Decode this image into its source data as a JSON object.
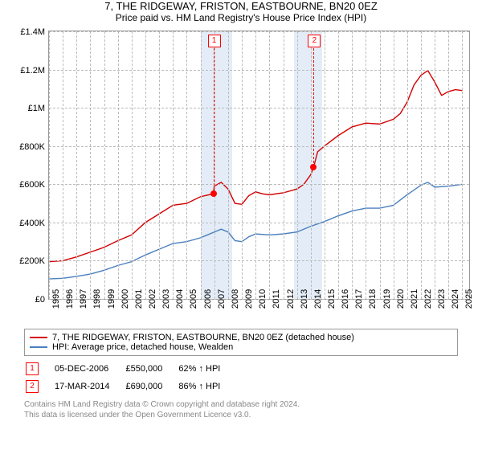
{
  "title": "7, THE RIDGEWAY, FRISTON, EASTBOURNE, BN20 0EZ",
  "subtitle": "Price paid vs. HM Land Registry's House Price Index (HPI)",
  "chart": {
    "type": "line",
    "x_years": [
      1995,
      1996,
      1997,
      1998,
      1999,
      2000,
      2001,
      2002,
      2003,
      2004,
      2005,
      2006,
      2007,
      2008,
      2009,
      2010,
      2011,
      2012,
      2013,
      2014,
      2015,
      2016,
      2017,
      2018,
      2019,
      2020,
      2021,
      2022,
      2023,
      2024,
      2025
    ],
    "xlim": [
      1995,
      2025.5
    ],
    "ylim": [
      0,
      1400000
    ],
    "ytick_step": 200000,
    "ytick_labels": [
      "£0",
      "£200K",
      "£400K",
      "£600K",
      "£800K",
      "£1M",
      "£1.2M",
      "£1.4M"
    ],
    "grid_color": "#bbbbbb",
    "band_color": "#e4edf7",
    "bands": [
      {
        "from": 2006.0,
        "to": 2008.3
      },
      {
        "from": 2012.8,
        "to": 2014.8
      }
    ],
    "series": [
      {
        "name": "property",
        "label": "7, THE RIDGEWAY, FRISTON, EASTBOURNE, BN20 0EZ (detached house)",
        "color": "#d40000",
        "line_width": 1.4,
        "points": [
          [
            1995,
            195000
          ],
          [
            1996,
            200000
          ],
          [
            1997,
            220000
          ],
          [
            1998,
            245000
          ],
          [
            1999,
            270000
          ],
          [
            2000,
            305000
          ],
          [
            2001,
            335000
          ],
          [
            2002,
            400000
          ],
          [
            2003,
            445000
          ],
          [
            2004,
            490000
          ],
          [
            2005,
            500000
          ],
          [
            2006,
            535000
          ],
          [
            2006.93,
            550000
          ],
          [
            2007,
            590000
          ],
          [
            2007.5,
            610000
          ],
          [
            2008,
            575000
          ],
          [
            2008.5,
            500000
          ],
          [
            2009,
            495000
          ],
          [
            2009.5,
            540000
          ],
          [
            2010,
            560000
          ],
          [
            2010.5,
            550000
          ],
          [
            2011,
            545000
          ],
          [
            2012,
            555000
          ],
          [
            2013,
            575000
          ],
          [
            2013.5,
            600000
          ],
          [
            2014,
            650000
          ],
          [
            2014.21,
            690000
          ],
          [
            2014.5,
            770000
          ],
          [
            2015,
            800000
          ],
          [
            2016,
            855000
          ],
          [
            2017,
            900000
          ],
          [
            2018,
            920000
          ],
          [
            2019,
            915000
          ],
          [
            2020,
            940000
          ],
          [
            2020.5,
            970000
          ],
          [
            2021,
            1030000
          ],
          [
            2021.5,
            1120000
          ],
          [
            2022,
            1170000
          ],
          [
            2022.5,
            1195000
          ],
          [
            2023,
            1135000
          ],
          [
            2023.5,
            1065000
          ],
          [
            2024,
            1085000
          ],
          [
            2024.5,
            1095000
          ],
          [
            2025,
            1090000
          ]
        ]
      },
      {
        "name": "hpi",
        "label": "HPI: Average price, detached house, Wealden",
        "color": "#4a7fbf",
        "line_width": 1.4,
        "points": [
          [
            1995,
            105000
          ],
          [
            1996,
            108000
          ],
          [
            1997,
            118000
          ],
          [
            1998,
            130000
          ],
          [
            1999,
            150000
          ],
          [
            2000,
            175000
          ],
          [
            2001,
            195000
          ],
          [
            2002,
            230000
          ],
          [
            2003,
            260000
          ],
          [
            2004,
            290000
          ],
          [
            2005,
            300000
          ],
          [
            2006,
            320000
          ],
          [
            2007,
            350000
          ],
          [
            2007.5,
            365000
          ],
          [
            2008,
            350000
          ],
          [
            2008.5,
            305000
          ],
          [
            2009,
            300000
          ],
          [
            2009.5,
            325000
          ],
          [
            2010,
            340000
          ],
          [
            2011,
            335000
          ],
          [
            2012,
            340000
          ],
          [
            2013,
            350000
          ],
          [
            2014,
            380000
          ],
          [
            2015,
            405000
          ],
          [
            2016,
            435000
          ],
          [
            2017,
            460000
          ],
          [
            2018,
            475000
          ],
          [
            2019,
            475000
          ],
          [
            2020,
            490000
          ],
          [
            2021,
            545000
          ],
          [
            2022,
            595000
          ],
          [
            2022.5,
            610000
          ],
          [
            2023,
            585000
          ],
          [
            2024,
            590000
          ],
          [
            2025,
            600000
          ]
        ]
      }
    ],
    "markers": [
      {
        "num": "1",
        "x": 2006.93,
        "y": 550000
      },
      {
        "num": "2",
        "x": 2014.21,
        "y": 690000
      }
    ]
  },
  "legend": {
    "series1": "7, THE RIDGEWAY, FRISTON, EASTBOURNE, BN20 0EZ (detached house)",
    "series2": "HPI: Average price, detached house, Wealden"
  },
  "sales": [
    {
      "num": "1",
      "date": "05-DEC-2006",
      "price": "£550,000",
      "vs_hpi": "62% ↑ HPI"
    },
    {
      "num": "2",
      "date": "17-MAR-2014",
      "price": "£690,000",
      "vs_hpi": "86% ↑ HPI"
    }
  ],
  "footer": {
    "line1": "Contains HM Land Registry data © Crown copyright and database right 2024.",
    "line2": "This data is licensed under the Open Government Licence v3.0."
  }
}
